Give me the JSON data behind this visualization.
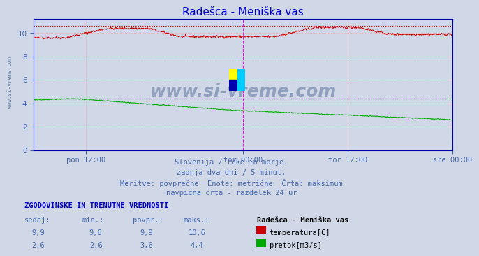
{
  "title": "Radešca - Meniška vas",
  "title_color": "#0000cc",
  "bg_color": "#d0d8e8",
  "plot_bg_color": "#d0d8e8",
  "grid_color": "#ff9999",
  "xlim": [
    0,
    576
  ],
  "ylim": [
    0,
    11.2
  ],
  "yticks": [
    0,
    2,
    4,
    6,
    8,
    10
  ],
  "xlabel_ticks": [
    72,
    288,
    432,
    576
  ],
  "xlabel_labels": [
    "pon 12:00",
    "tor 00:00",
    "tor 12:00",
    "sre 00:00"
  ],
  "temp_color": "#cc0000",
  "flow_color": "#00aa00",
  "vline_color": "#ff00ff",
  "vline_positions": [
    288,
    576
  ],
  "temp_max_val": 10.6,
  "flow_max_val": 4.4,
  "n_points": 576,
  "subtitle_lines": [
    "Slovenija / reke in morje.",
    "zadnja dva dni / 5 minut.",
    "Meritve: povprečne  Enote: metrične  Črta: maksimum",
    "navpična črta - razdelek 24 ur"
  ],
  "subtitle_color": "#4466aa",
  "footer_header": "ZGODOVINSKE IN TRENUTNE VREDNOSTI",
  "footer_header_color": "#0000bb",
  "col_headers": [
    "sedaj:",
    "min.:",
    "povpr.:",
    "maks.:"
  ],
  "col_header_color": "#4466aa",
  "temp_row": [
    "9,9",
    "9,6",
    "9,9",
    "10,6"
  ],
  "flow_row": [
    "2,6",
    "2,6",
    "3,6",
    "4,4"
  ],
  "row_color": "#4466aa",
  "legend_title": "Radešca - Meniška vas",
  "legend_title_color": "#000000",
  "temp_label": "temperatura[C]",
  "flow_label": "pretok[m3/s]",
  "watermark_color": "#1a3a6a",
  "axis_color": "#0000aa",
  "tick_color": "#4466aa"
}
